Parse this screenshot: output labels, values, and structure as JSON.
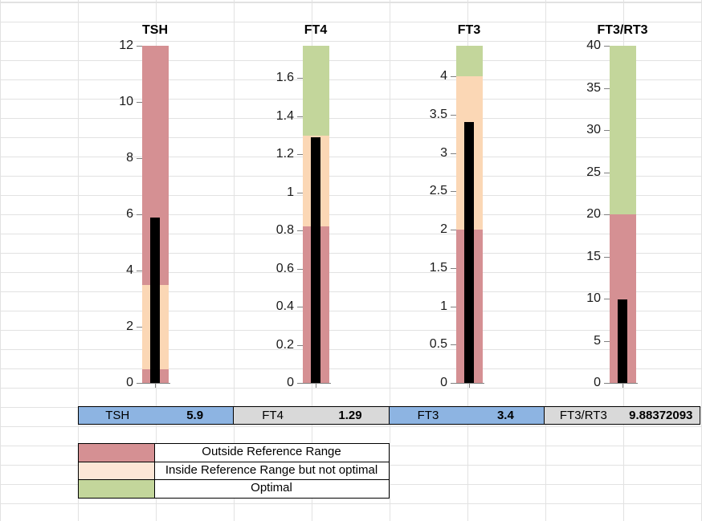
{
  "colors": {
    "outside": "#D59093",
    "inside": "#FBD7B5",
    "optimal": "#C3D69B",
    "value_bar": "#000000",
    "table_blue": "#8DB4E2",
    "table_gray": "#D9D9D9",
    "legend_inside": "#FCE6D6",
    "grid": "#E2E2E2",
    "axis": "#808080"
  },
  "chart_data": [
    {
      "type": "bar",
      "id": "tsh",
      "title": "TSH",
      "value": 5.9,
      "axis": {
        "min": 0,
        "max": 12,
        "ticks": [
          {
            "v": 0,
            "label": "0"
          },
          {
            "v": 2,
            "label": "2"
          },
          {
            "v": 4,
            "label": "4"
          },
          {
            "v": 6,
            "label": "6"
          },
          {
            "v": 8,
            "label": "8"
          },
          {
            "v": 10,
            "label": "10"
          },
          {
            "v": 12,
            "label": "12"
          }
        ]
      },
      "segments": [
        {
          "from": 0,
          "to": 0.5,
          "zone": "outside"
        },
        {
          "from": 0.5,
          "to": 3.5,
          "zone": "inside"
        },
        {
          "from": 3.5,
          "to": 12,
          "zone": "outside"
        }
      ]
    },
    {
      "type": "bar",
      "id": "ft4",
      "title": "FT4",
      "value": 1.29,
      "axis": {
        "min": 0,
        "max": 1.77,
        "ticks": [
          {
            "v": 0,
            "label": "0"
          },
          {
            "v": 0.2,
            "label": "0.2"
          },
          {
            "v": 0.4,
            "label": "0.4"
          },
          {
            "v": 0.6,
            "label": "0.6"
          },
          {
            "v": 0.8,
            "label": "0.8"
          },
          {
            "v": 1,
            "label": "1"
          },
          {
            "v": 1.2,
            "label": "1.2"
          },
          {
            "v": 1.4,
            "label": "1.4"
          },
          {
            "v": 1.6,
            "label": "1.6"
          }
        ]
      },
      "segments": [
        {
          "from": 0,
          "to": 0.82,
          "zone": "outside"
        },
        {
          "from": 0.82,
          "to": 1.3,
          "zone": "inside"
        },
        {
          "from": 1.3,
          "to": 1.77,
          "zone": "optimal"
        }
      ]
    },
    {
      "type": "bar",
      "id": "ft3",
      "title": "FT3",
      "value": 3.4,
      "axis": {
        "min": 0,
        "max": 4.4,
        "ticks": [
          {
            "v": 0,
            "label": "0"
          },
          {
            "v": 0.5,
            "label": "0.5"
          },
          {
            "v": 1,
            "label": "1"
          },
          {
            "v": 1.5,
            "label": "1.5"
          },
          {
            "v": 2,
            "label": "2"
          },
          {
            "v": 2.5,
            "label": "2.5"
          },
          {
            "v": 3,
            "label": "3"
          },
          {
            "v": 3.5,
            "label": "3.5"
          },
          {
            "v": 4,
            "label": "4"
          }
        ]
      },
      "segments": [
        {
          "from": 0,
          "to": 2,
          "zone": "outside"
        },
        {
          "from": 2,
          "to": 4,
          "zone": "inside"
        },
        {
          "from": 4,
          "to": 4.4,
          "zone": "optimal"
        }
      ]
    },
    {
      "type": "bar",
      "id": "ft3-rt3",
      "title": "FT3/RT3",
      "value": 9.88372093,
      "axis": {
        "min": 0,
        "max": 40,
        "ticks": [
          {
            "v": 0,
            "label": "0"
          },
          {
            "v": 5,
            "label": "5"
          },
          {
            "v": 10,
            "label": "10"
          },
          {
            "v": 15,
            "label": "15"
          },
          {
            "v": 20,
            "label": "20"
          },
          {
            "v": 25,
            "label": "25"
          },
          {
            "v": 30,
            "label": "30"
          },
          {
            "v": 35,
            "label": "35"
          },
          {
            "v": 40,
            "label": "40"
          }
        ]
      },
      "segments": [
        {
          "from": 0,
          "to": 20,
          "zone": "outside"
        },
        {
          "from": 20,
          "to": 40,
          "zone": "optimal"
        }
      ]
    }
  ],
  "results_table": [
    {
      "label": "TSH",
      "value": "5.9",
      "highlight": "table_blue"
    },
    {
      "label": "FT4",
      "value": "1.29",
      "highlight": "table_gray"
    },
    {
      "label": "FT3",
      "value": "3.4",
      "highlight": "table_blue"
    },
    {
      "label": "FT3/RT3",
      "value": "9.88372093",
      "highlight": "table_gray"
    }
  ],
  "legend": [
    {
      "zone": "outside",
      "label": "Outside Reference Range",
      "color": "#D59093"
    },
    {
      "zone": "inside",
      "label": "Inside Reference Range but not optimal",
      "color": "#FCE6D6"
    },
    {
      "zone": "optimal",
      "label": "Optimal",
      "color": "#C3D69B"
    }
  ]
}
